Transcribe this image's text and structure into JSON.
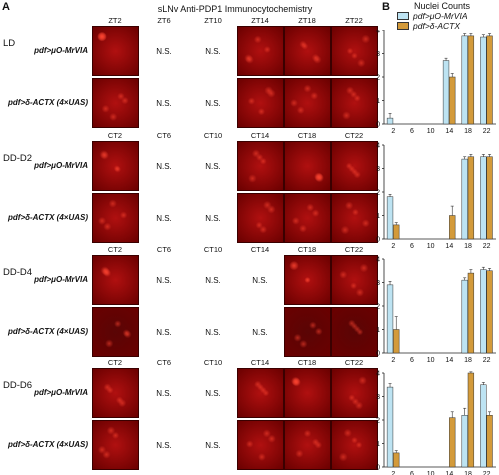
{
  "panels": {
    "A": "A",
    "B": "B"
  },
  "title": "sLNv Anti-PDP1 Immunocytochemistry",
  "legend": {
    "title": "Nuclei Counts",
    "items": [
      {
        "label": "pdf>μO-MrVIA",
        "color": "#bde3f2"
      },
      {
        "label": "pdf>δ-ACTX",
        "color": "#d39a3a"
      }
    ]
  },
  "ns_label": "N.S.",
  "genotypes": [
    "pdf>μO-MrVIA",
    "pdf>δ-ACTX (4×UAS)"
  ],
  "conditions": [
    {
      "name": "LD",
      "times": [
        "ZT2",
        "ZT6",
        "ZT10",
        "ZT14",
        "ZT18",
        "ZT22"
      ],
      "imaged": [
        true,
        false,
        false,
        true,
        true,
        true
      ]
    },
    {
      "name": "DD-D2",
      "times": [
        "CT2",
        "CT6",
        "CT10",
        "CT14",
        "CT18",
        "CT22"
      ],
      "imaged": [
        true,
        false,
        false,
        true,
        true,
        true
      ]
    },
    {
      "name": "DD-D4",
      "times": [
        "CT2",
        "CT6",
        "CT10",
        "CT14",
        "CT18",
        "CT22"
      ],
      "imaged": [
        true,
        false,
        false,
        false,
        true,
        true
      ]
    },
    {
      "name": "DD-D6",
      "times": [
        "CT2",
        "CT6",
        "CT10",
        "CT14",
        "CT18",
        "CT22"
      ],
      "imaged": [
        true,
        false,
        false,
        true,
        true,
        true
      ]
    }
  ],
  "chart_data": [
    {
      "type": "bar",
      "condition": "LD",
      "categories": [
        "2",
        "6",
        "10",
        "14",
        "18",
        "22"
      ],
      "ylim": [
        0,
        4
      ],
      "yticks": [
        0,
        1,
        2,
        3,
        4
      ],
      "series": [
        {
          "name": "pdf>μO-MrVIA",
          "values": [
            0.25,
            0,
            0,
            2.7,
            3.75,
            3.7
          ],
          "errors": [
            0.2,
            0,
            0,
            0.1,
            0.1,
            0.1
          ]
        },
        {
          "name": "pdf>δ-ACTX",
          "values": [
            0,
            0,
            0,
            2.0,
            3.75,
            3.75
          ],
          "errors": [
            0,
            0,
            0,
            0.15,
            0.1,
            0.1
          ]
        }
      ]
    },
    {
      "type": "bar",
      "condition": "DD-D2",
      "categories": [
        "2",
        "6",
        "10",
        "14",
        "18",
        "22"
      ],
      "ylim": [
        0,
        4
      ],
      "yticks": [
        0,
        1,
        2,
        3,
        4
      ],
      "series": [
        {
          "name": "pdf>μO-MrVIA",
          "values": [
            1.8,
            0,
            0,
            0,
            3.4,
            3.5
          ],
          "errors": [
            0.1,
            0,
            0,
            0,
            0.1,
            0.1
          ]
        },
        {
          "name": "pdf>δ-ACTX",
          "values": [
            0.6,
            0,
            0,
            1.0,
            3.5,
            3.5
          ],
          "errors": [
            0.1,
            0,
            0,
            0.4,
            0.1,
            0.1
          ]
        }
      ]
    },
    {
      "type": "bar",
      "condition": "DD-D4",
      "categories": [
        "2",
        "6",
        "10",
        "14",
        "18",
        "22"
      ],
      "ylim": [
        0,
        4
      ],
      "yticks": [
        0,
        1,
        2,
        3,
        4
      ],
      "series": [
        {
          "name": "pdf>μO-MrVIA",
          "values": [
            2.9,
            0,
            0,
            0,
            3.1,
            3.55
          ],
          "errors": [
            0.15,
            0,
            0,
            0,
            0.1,
            0.1
          ]
        },
        {
          "name": "pdf>δ-ACTX",
          "values": [
            1.0,
            0,
            0,
            0,
            3.4,
            3.5
          ],
          "errors": [
            0.55,
            0,
            0,
            0,
            0.15,
            0.1
          ]
        }
      ]
    },
    {
      "type": "bar",
      "condition": "DD-D6",
      "categories": [
        "2",
        "6",
        "10",
        "14",
        "18",
        "22"
      ],
      "ylim": [
        0,
        4
      ],
      "yticks": [
        0,
        1,
        2,
        3,
        4
      ],
      "series": [
        {
          "name": "pdf>μO-MrVIA",
          "values": [
            3.4,
            0,
            0,
            0,
            2.2,
            3.5
          ],
          "errors": [
            0.15,
            0,
            0,
            0,
            0.3,
            0.1
          ]
        },
        {
          "name": "pdf>δ-ACTX",
          "values": [
            0.6,
            0,
            0,
            2.1,
            4.0,
            2.2
          ],
          "errors": [
            0.1,
            0,
            0,
            0.25,
            0.05,
            0.15
          ]
        }
      ]
    }
  ]
}
